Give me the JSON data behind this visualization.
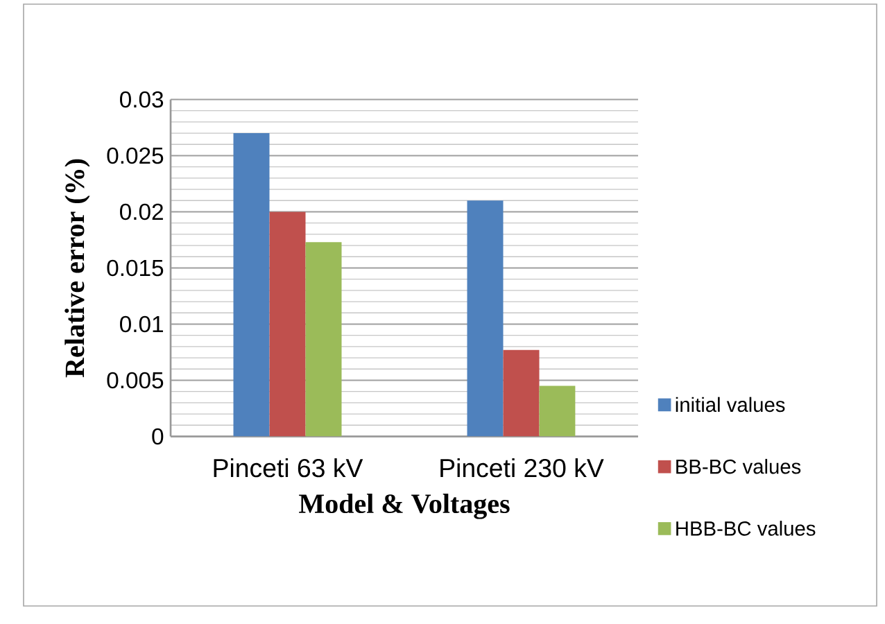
{
  "chart_data": {
    "type": "bar",
    "xlabel": "Model & Voltages",
    "ylabel": "Relative error (%)",
    "categories": [
      "Pinceti 63 kV",
      "Pinceti 230 kV"
    ],
    "series": [
      {
        "name": "initial values",
        "color": "#4f81bd",
        "values": [
          0.027,
          0.021
        ]
      },
      {
        "name": "BB-BC values",
        "color": "#c0504d",
        "values": [
          0.02,
          0.0077
        ]
      },
      {
        "name": "HBB-BC values",
        "color": "#9bbb59",
        "values": [
          0.0173,
          0.0045
        ]
      }
    ],
    "ylim": [
      0,
      0.03
    ],
    "yticks": [
      0,
      0.005,
      0.01,
      0.015,
      0.02,
      0.025,
      0.03
    ],
    "grid": "y",
    "legend": "right"
  }
}
